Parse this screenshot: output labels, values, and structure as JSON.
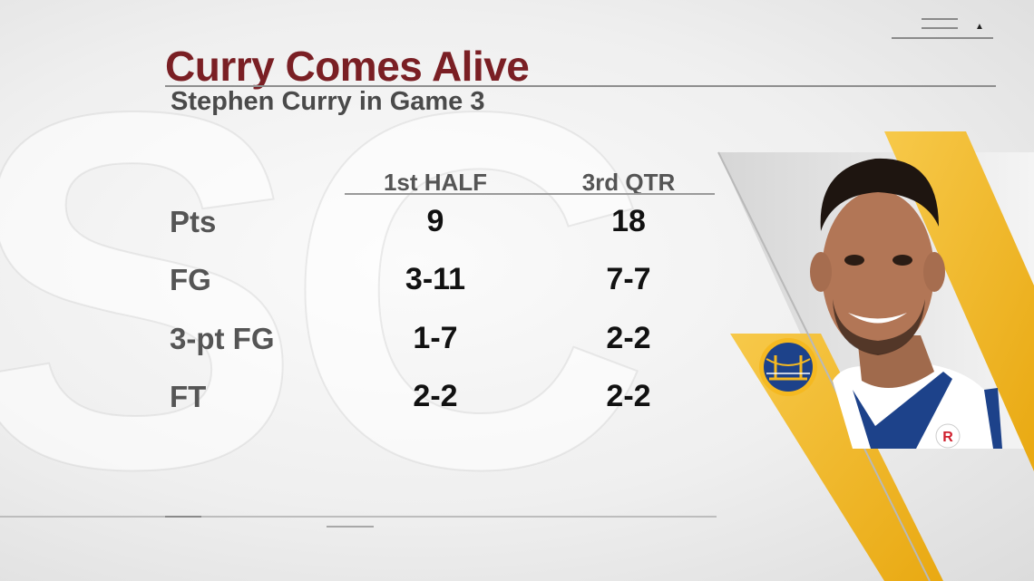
{
  "header": {
    "title": "Curry Comes Alive",
    "subtitle": "Stephen Curry in Game 3"
  },
  "table": {
    "columns": [
      "1st HALF",
      "3rd QTR"
    ],
    "rows": [
      {
        "label": "Pts",
        "values": [
          "9",
          "18"
        ]
      },
      {
        "label": "FG",
        "values": [
          "3-11",
          "7-7"
        ]
      },
      {
        "label": "3-pt FG",
        "values": [
          "1-7",
          "2-2"
        ]
      },
      {
        "label": "FT",
        "values": [
          "2-2",
          "2-2"
        ]
      }
    ]
  },
  "graphic": {
    "team_logo_icon": "golden-state-warriors-logo-icon",
    "player_photo": "stephen-curry-headshot",
    "jersey_patch_letter": "R"
  },
  "colors": {
    "title": "#7a1f24",
    "accent_gold": "#f5b921",
    "team_blue": "#1d428a",
    "label_gray": "#555555",
    "value_black": "#111111"
  }
}
